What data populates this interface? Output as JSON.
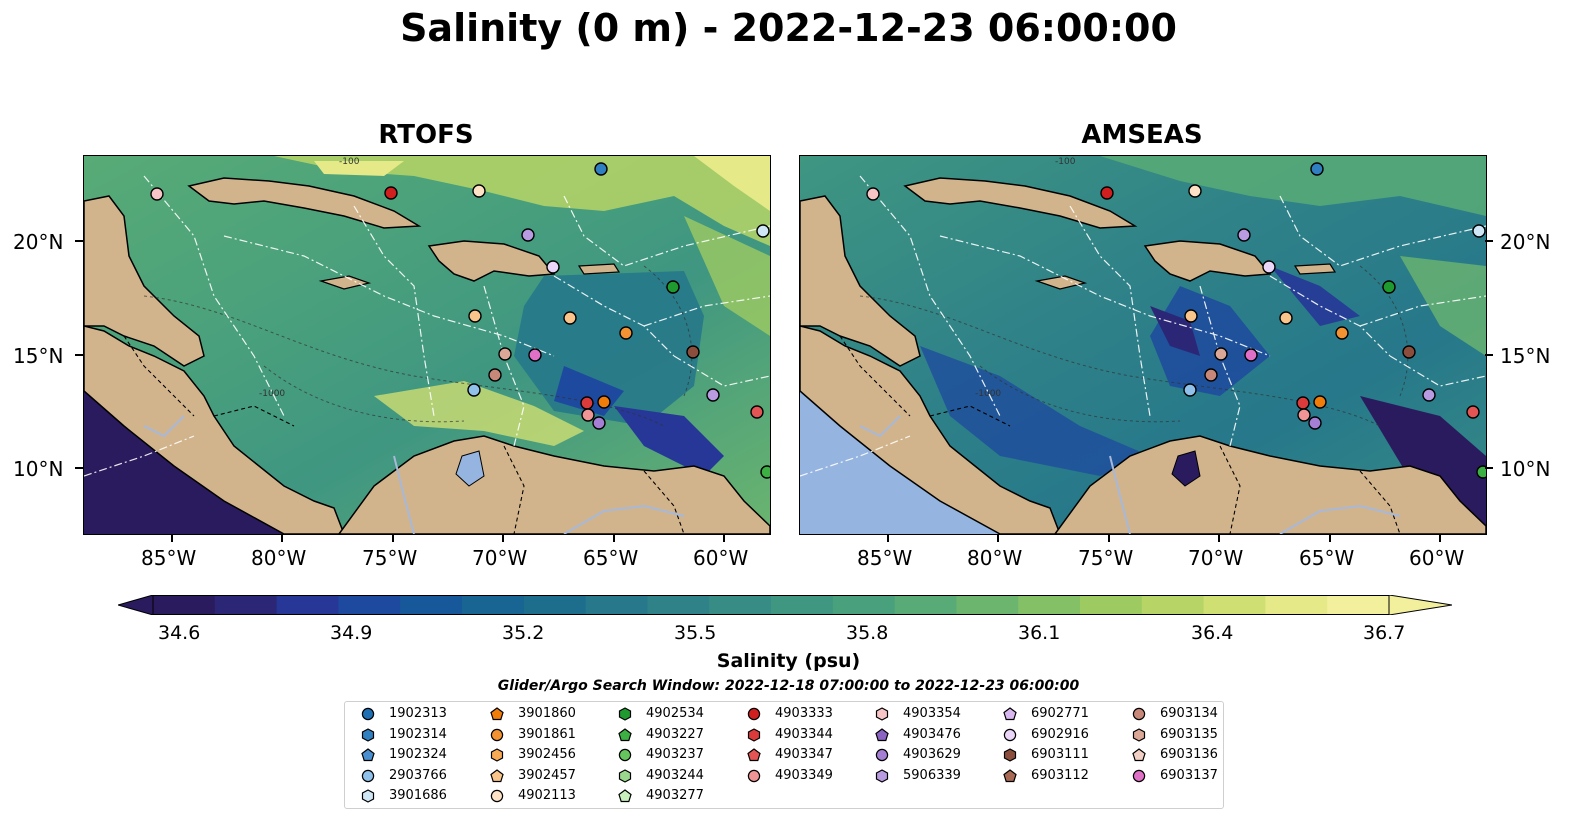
{
  "title": "Salinity (0 m) - 2022-12-23 06:00:00",
  "panels": [
    {
      "title": "RTOFS"
    },
    {
      "title": "AMSEAS"
    }
  ],
  "lat_labels": [
    "20°N",
    "15°N",
    "10°N"
  ],
  "lon_labels": [
    "85°W",
    "80°W",
    "75°W",
    "70°W",
    "65°W",
    "60°W"
  ],
  "contour_labels": [
    "-100",
    "-1000"
  ],
  "colorbar": {
    "label": "Salinity (psu)",
    "ticks": [
      "34.6",
      "34.9",
      "35.2",
      "35.5",
      "35.8",
      "36.1",
      "36.4",
      "36.7"
    ],
    "colors": [
      "#2a1b5e",
      "#2c2676",
      "#263797",
      "#1d4a9f",
      "#17589a",
      "#186492",
      "#1d6e8d",
      "#26788a",
      "#2f8288",
      "#378c85",
      "#3f9681",
      "#49a07c",
      "#58ab76",
      "#6bb56f",
      "#83c066",
      "#9dcb62",
      "#b7d566",
      "#cfdf72",
      "#e5e987",
      "#f2f09c"
    ]
  },
  "search_window": "Glider/Argo Search Window: 2022-12-18 07:00:00 to 2022-12-23 06:00:00",
  "colors": {
    "land": "#d2b48c",
    "lake": "#96b4e0",
    "river": "#a8b8d8"
  },
  "legend": [
    [
      {
        "id": "1902313",
        "marker": "circle",
        "color": "#1f6fb4"
      },
      {
        "id": "1902314",
        "marker": "hexagon",
        "color": "#2f7fc1"
      },
      {
        "id": "1902324",
        "marker": "pentagon",
        "color": "#4a90d0"
      },
      {
        "id": "2903766",
        "marker": "circle",
        "color": "#8fc1ea"
      },
      {
        "id": "3901686",
        "marker": "hexagon",
        "color": "#cfe6f7"
      }
    ],
    [
      {
        "id": "3901860",
        "marker": "pentagon",
        "color": "#f07c0a"
      },
      {
        "id": "3901861",
        "marker": "circle",
        "color": "#f39232"
      },
      {
        "id": "3902456",
        "marker": "hexagon",
        "color": "#f7aa55"
      },
      {
        "id": "3902457",
        "marker": "pentagon",
        "color": "#f9c58a"
      },
      {
        "id": "4902113",
        "marker": "circle",
        "color": "#fde2c6"
      }
    ],
    [
      {
        "id": "4902534",
        "marker": "hexagon",
        "color": "#1f9a2f"
      },
      {
        "id": "4903227",
        "marker": "pentagon",
        "color": "#3cb043"
      },
      {
        "id": "4903237",
        "marker": "circle",
        "color": "#66c45f"
      },
      {
        "id": "4903244",
        "marker": "hexagon",
        "color": "#9ad98d"
      },
      {
        "id": "4903277",
        "marker": "pentagon",
        "color": "#c7f0bc"
      }
    ],
    [
      {
        "id": "4903333",
        "marker": "circle",
        "color": "#d01f1f"
      },
      {
        "id": "4903344",
        "marker": "hexagon",
        "color": "#dc3b3b"
      },
      {
        "id": "4903347",
        "marker": "pentagon",
        "color": "#e35454"
      },
      {
        "id": "4903349",
        "marker": "circle",
        "color": "#ef9595"
      }
    ],
    [
      {
        "id": "4903354",
        "marker": "hexagon",
        "color": "#f7c5c5"
      },
      {
        "id": "4903476",
        "marker": "pentagon",
        "color": "#8b63c2"
      },
      {
        "id": "4903629",
        "marker": "circle",
        "color": "#a57fd3"
      },
      {
        "id": "5906339",
        "marker": "hexagon",
        "color": "#b89be0"
      }
    ],
    [
      {
        "id": "6902771",
        "marker": "pentagon",
        "color": "#d9b7f0"
      },
      {
        "id": "6902916",
        "marker": "circle",
        "color": "#ead6f8"
      },
      {
        "id": "6903111",
        "marker": "hexagon",
        "color": "#8c4e3c"
      },
      {
        "id": "6903112",
        "marker": "pentagon",
        "color": "#a86a55"
      }
    ],
    [
      {
        "id": "6903134",
        "marker": "circle",
        "color": "#c7887a"
      },
      {
        "id": "6903135",
        "marker": "hexagon",
        "color": "#dba898"
      },
      {
        "id": "6903136",
        "marker": "pentagon",
        "color": "#f2d0c5"
      },
      {
        "id": "6903137",
        "marker": "circle",
        "color": "#e06fc6"
      }
    ]
  ]
}
